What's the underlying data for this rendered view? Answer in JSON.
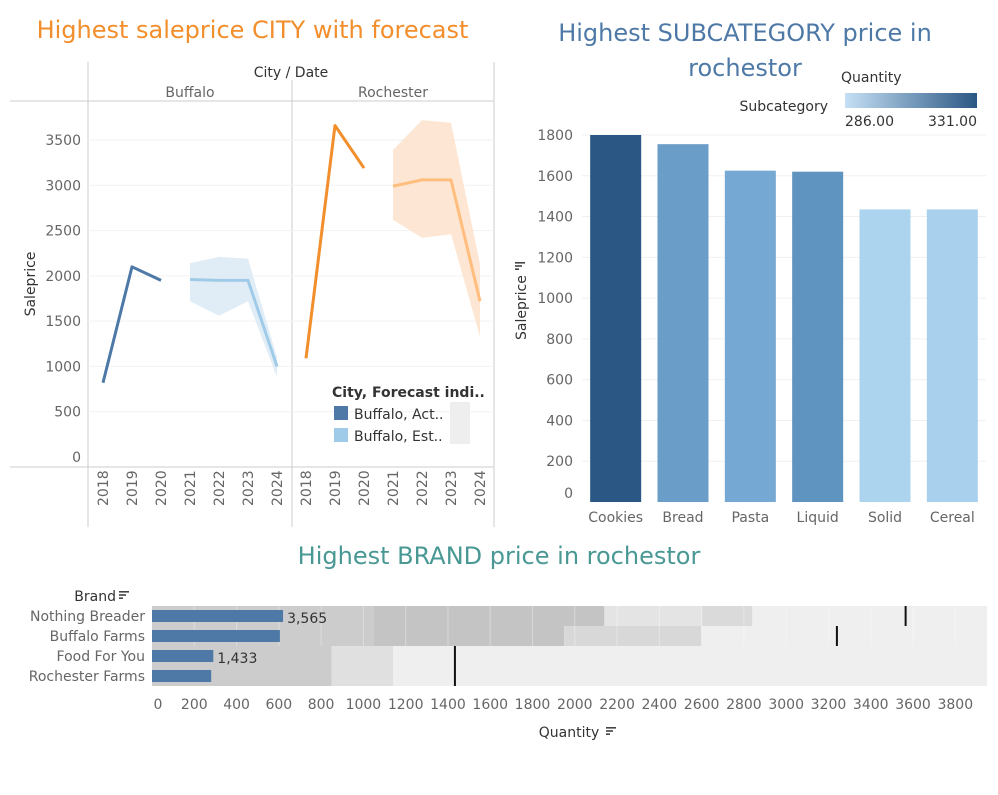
{
  "titles": {
    "city": "Highest saleprice CITY with forecast",
    "subcategory": "Highest SUBCATEGORY price in rochestor",
    "brand": "Highest BRAND price in rochestor"
  },
  "chart_data": [
    {
      "type": "line",
      "title": "Highest saleprice CITY with forecast",
      "column_header": "City / Date",
      "panels": [
        "Buffalo",
        "Rochester"
      ],
      "x": [
        "2018",
        "2019",
        "2020",
        "2021",
        "2022",
        "2023",
        "2024"
      ],
      "ylabel": "Saleprice",
      "ylim": [
        0,
        3500
      ],
      "yticks": [
        "0",
        "500",
        "1000",
        "1500",
        "2000",
        "2500",
        "3000",
        "3500"
      ],
      "series": [
        {
          "panel": "Buffalo",
          "kind": "actual",
          "color": "#4e79a7",
          "points": [
            [
              2018,
              820
            ],
            [
              2019,
              2100
            ],
            [
              2020,
              1950
            ]
          ]
        },
        {
          "panel": "Buffalo",
          "kind": "estimate",
          "color": "#a0cbe8",
          "band_color": "#dceaf5",
          "points": [
            [
              2021,
              1960
            ],
            [
              2022,
              1950
            ],
            [
              2023,
              1950
            ],
            [
              2024,
              1000
            ]
          ],
          "band_low": [
            1720,
            1560,
            1720,
            880
          ],
          "band_high": [
            2140,
            2210,
            2190,
            1100
          ]
        },
        {
          "panel": "Rochester",
          "kind": "actual",
          "color": "#f28e2b",
          "points": [
            [
              2018,
              1090
            ],
            [
              2019,
              3660
            ],
            [
              2020,
              3190
            ]
          ]
        },
        {
          "panel": "Rochester",
          "kind": "estimate",
          "color": "#ffbe7d",
          "band_color": "#fde3cc",
          "points": [
            [
              2021,
              2990
            ],
            [
              2022,
              3060
            ],
            [
              2023,
              3060
            ],
            [
              2024,
              1720
            ]
          ],
          "band_low": [
            2620,
            2420,
            2460,
            1330
          ],
          "band_high": [
            3390,
            3720,
            3690,
            2130
          ]
        }
      ],
      "legend": {
        "title": "City, Forecast indi..",
        "position": "bottom-right",
        "items": [
          {
            "label": "Buffalo, Act..",
            "color": "#4e79a7"
          },
          {
            "label": "Buffalo, Est..",
            "color": "#a0cbe8"
          }
        ]
      }
    },
    {
      "type": "bar",
      "title": "Highest SUBCATEGORY price in rochestor",
      "categories": [
        "Cookies",
        "Bread",
        "Pasta",
        "Liquid",
        "Solid",
        "Cereal"
      ],
      "values": [
        1800,
        1755,
        1625,
        1620,
        1435,
        1435
      ],
      "colors": [
        "#2a5783",
        "#6a9ec9",
        "#75a8d2",
        "#6094c0",
        "#add4ee",
        "#a9d0ec"
      ],
      "xlabel": "Subcategory",
      "ylabel": "Saleprice",
      "ylim": [
        0,
        1800
      ],
      "yticks": [
        "0",
        "200",
        "400",
        "600",
        "800",
        "1000",
        "1200",
        "1400",
        "1600",
        "1800"
      ],
      "color_legend": {
        "title": "Quantity",
        "min_label": "286.00",
        "max_label": "331.00",
        "min_color": "#c5e0f5",
        "max_color": "#2a5783"
      }
    },
    {
      "type": "bar",
      "orientation": "horizontal",
      "title": "Highest BRAND price in rochestor",
      "row_header": "Brand",
      "categories": [
        "Nothing Breader",
        "Buffalo Farms",
        "Food For You",
        "Rochester Farms"
      ],
      "values": [
        3565,
        3450,
        1433,
        1420
      ],
      "data_labels": [
        "3,565",
        "",
        "1,433",
        ""
      ],
      "bar_units": [
        620,
        605,
        290,
        280
      ],
      "reference_values": [
        3565,
        3240,
        1433,
        null
      ],
      "bands": [
        [
          [
            0,
            1050,
            "#cccccc"
          ],
          [
            1050,
            2140,
            "#c4c4c4"
          ],
          [
            2140,
            2600,
            "#e4e4e4"
          ],
          [
            2600,
            2840,
            "#dadada"
          ],
          [
            2840,
            3950,
            "#efefef"
          ]
        ],
        [
          [
            0,
            1050,
            "#cccccc"
          ],
          [
            1050,
            1950,
            "#c4c4c4"
          ],
          [
            1950,
            2600,
            "#d8d8d8"
          ],
          [
            2600,
            3950,
            "#efefef"
          ]
        ],
        [
          [
            0,
            850,
            "#cccccc"
          ],
          [
            850,
            1140,
            "#e0e0e0"
          ],
          [
            1140,
            3950,
            "#efefef"
          ]
        ],
        [
          [
            0,
            850,
            "#cccccc"
          ],
          [
            850,
            1140,
            "#e0e0e0"
          ],
          [
            1140,
            3950,
            "#efefef"
          ]
        ]
      ],
      "bar_color": "#4e79a7",
      "xlabel": "Quantity",
      "xlim": [
        0,
        3950
      ],
      "xticks": [
        "0",
        "200",
        "400",
        "600",
        "800",
        "1000",
        "1200",
        "1400",
        "1600",
        "1800",
        "2000",
        "2200",
        "2400",
        "2600",
        "2800",
        "3000",
        "3200",
        "3400",
        "3600",
        "3800"
      ]
    }
  ]
}
